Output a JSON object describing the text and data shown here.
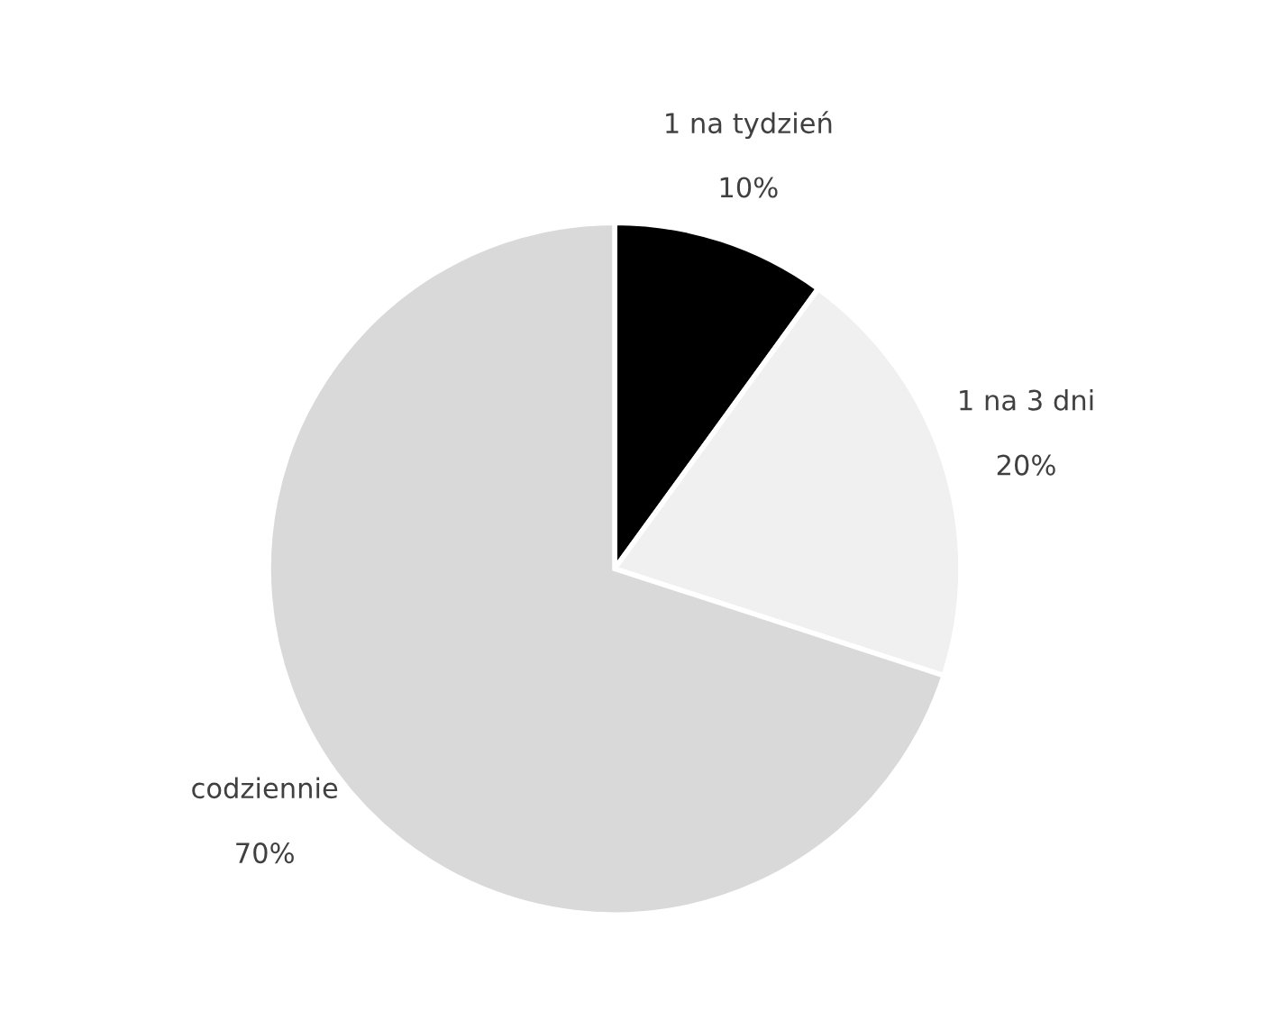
{
  "chart_data": {
    "type": "pie",
    "categories": [
      "1 na tydzień",
      "1 na 3 dni",
      "codziennie"
    ],
    "values": [
      10,
      20,
      70
    ],
    "value_labels": [
      "10%",
      "20%",
      "70%"
    ],
    "colors": [
      "#000000",
      "#f0f0f0",
      "#d9d9d9"
    ]
  }
}
